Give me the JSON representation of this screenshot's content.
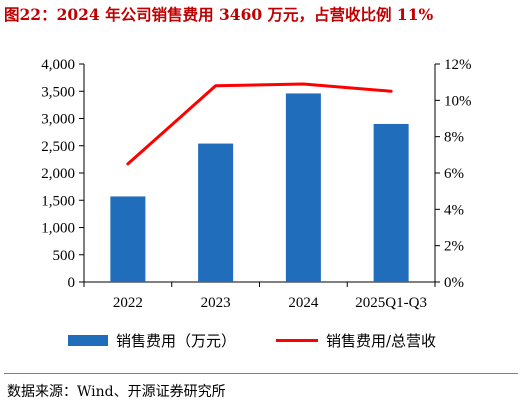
{
  "title": "图22：2024 年公司销售费用 3460 万元，占营收比例 11%",
  "source": "数据来源：Wind、开源证券研究所",
  "colors": {
    "bar": "#1f6dbb",
    "line": "#ff0000",
    "title": "#c00000"
  },
  "chart_data": {
    "type": "bar+line",
    "categories": [
      "2022",
      "2023",
      "2024",
      "2025Q1-Q3"
    ],
    "series": [
      {
        "name": "销售费用（万元）",
        "type": "bar",
        "axis": "left",
        "values": [
          1570,
          2540,
          3460,
          2900
        ]
      },
      {
        "name": "销售费用/总营收",
        "type": "line",
        "axis": "right",
        "unit": "%",
        "values": [
          6.5,
          10.8,
          10.9,
          10.5
        ]
      }
    ],
    "y_left": {
      "min": 0,
      "max": 4000,
      "ticks": [
        "0",
        "500",
        "1,000",
        "1,500",
        "2,000",
        "2,500",
        "3,000",
        "3,500",
        "4,000"
      ]
    },
    "y_right": {
      "min": 0,
      "max": 12,
      "ticks": [
        "0%",
        "2%",
        "4%",
        "6%",
        "8%",
        "10%",
        "12%"
      ]
    },
    "grid": false,
    "legend_position": "bottom"
  }
}
